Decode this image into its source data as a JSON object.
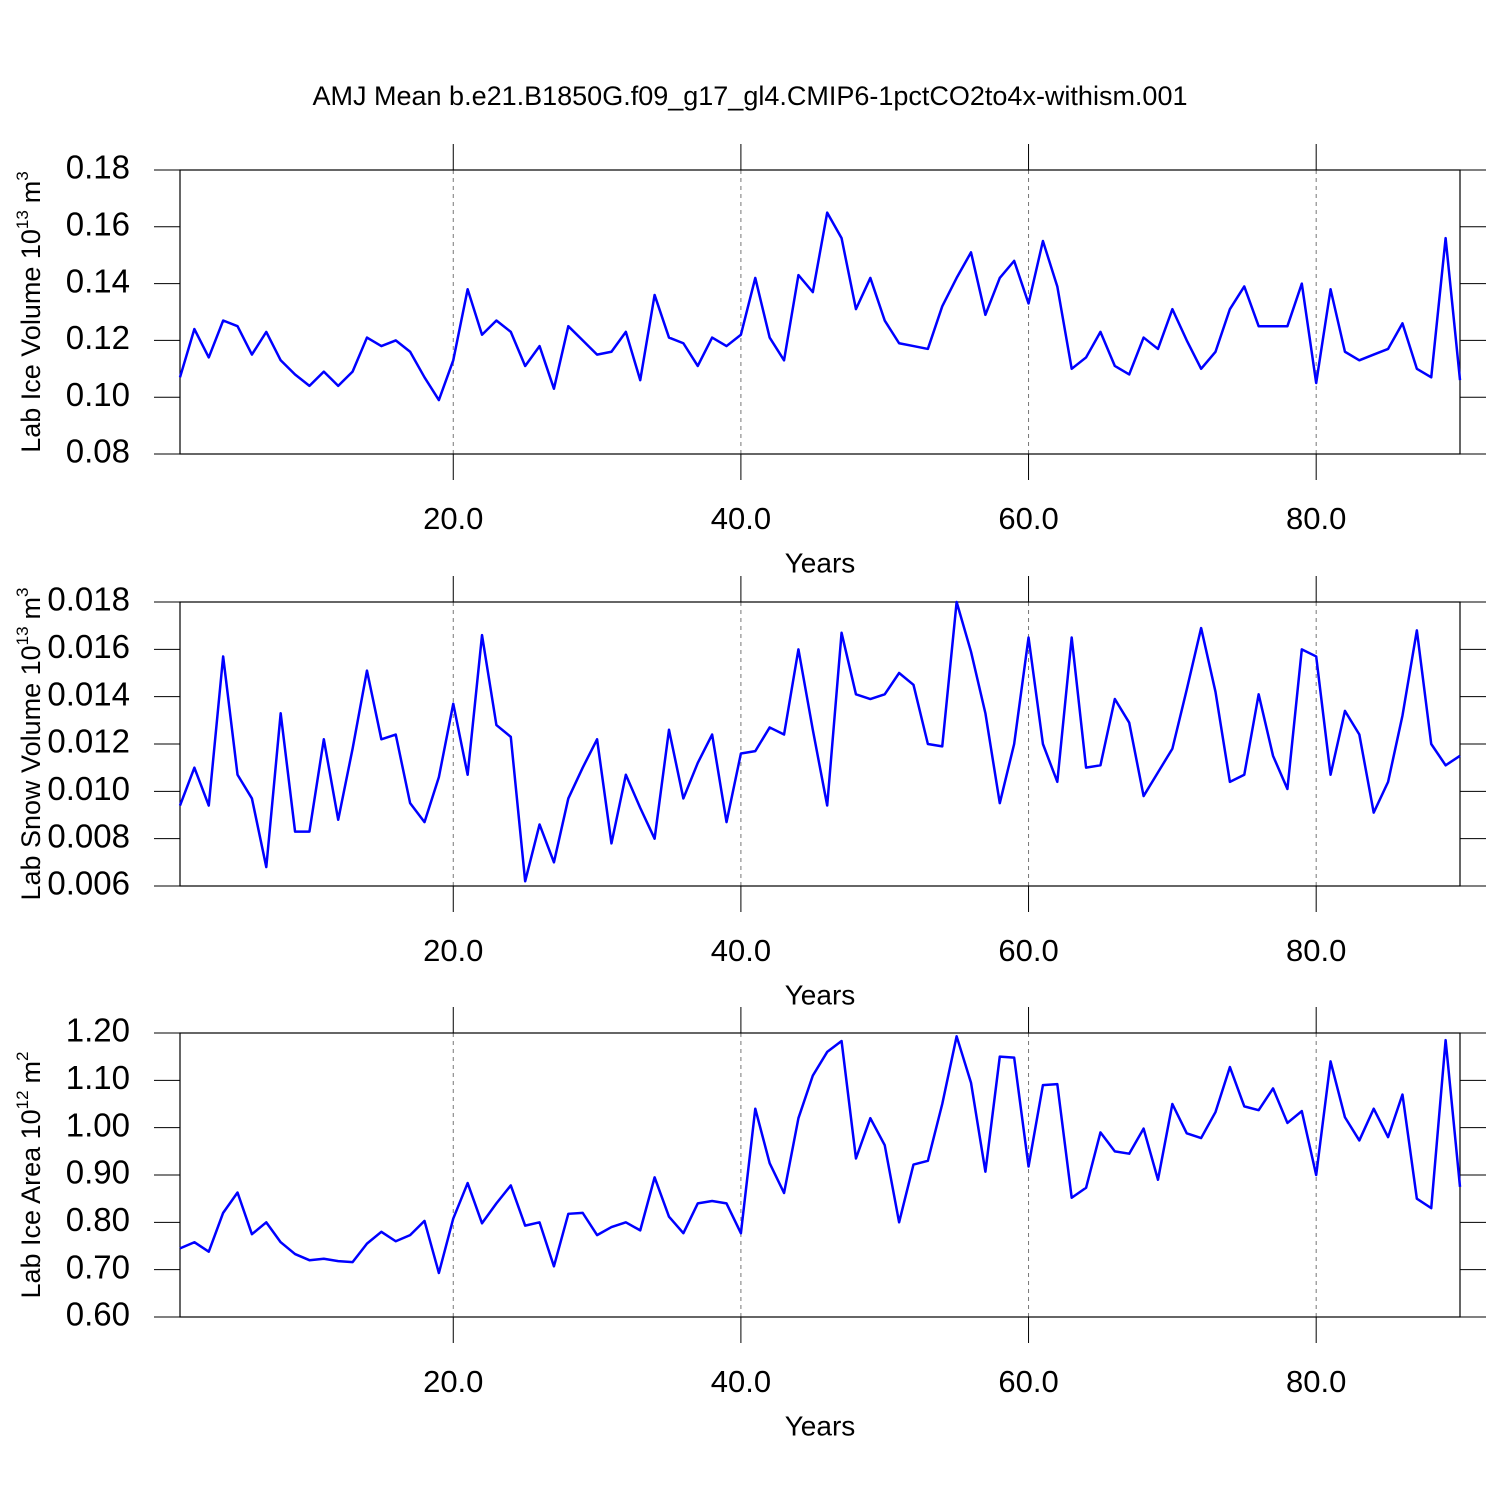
{
  "title": "AMJ Mean b.e21.B1850G.f09_g17_gl4.CMIP6-1pctCO2to4x-withism.001",
  "chart_data": [
    {
      "type": "line",
      "xlabel": "Years",
      "ylabel": [
        {
          "text": "Lab Ice Volume 10"
        },
        {
          "text": "13",
          "sup": true
        },
        {
          "text": "m"
        },
        {
          "text": "3",
          "sup": true
        }
      ],
      "xlim": [
        1,
        90
      ],
      "ylim": [
        0.08,
        0.18
      ],
      "xgrid": true,
      "xticks": [
        {
          "value": 20,
          "label": "20.0"
        },
        {
          "value": 40,
          "label": "40.0"
        },
        {
          "value": 60,
          "label": "60.0"
        },
        {
          "value": 80,
          "label": "80.0"
        }
      ],
      "yticks": [
        0.08,
        {
          "value": 0.1,
          "label": "0.10"
        },
        0.12,
        0.14,
        0.16,
        0.18
      ],
      "x": [
        1,
        2,
        3,
        4,
        5,
        6,
        7,
        8,
        9,
        10,
        11,
        12,
        13,
        14,
        15,
        16,
        17,
        18,
        19,
        20,
        21,
        22,
        23,
        24,
        25,
        26,
        27,
        28,
        29,
        30,
        31,
        32,
        33,
        34,
        35,
        36,
        37,
        38,
        39,
        40,
        41,
        42,
        43,
        44,
        45,
        46,
        47,
        48,
        49,
        50,
        51,
        52,
        53,
        54,
        55,
        56,
        57,
        58,
        59,
        60,
        61,
        62,
        63,
        64,
        65,
        66,
        67,
        68,
        69,
        70,
        71,
        72,
        73,
        74,
        75,
        76,
        77,
        78,
        79,
        80,
        81,
        82,
        83,
        84,
        85,
        86,
        87,
        88,
        89,
        90
      ],
      "series": [
        {
          "color": "#0000ff",
          "values": [
            0.107,
            0.124,
            0.114,
            0.127,
            0.125,
            0.115,
            0.123,
            0.113,
            0.108,
            0.104,
            0.109,
            0.104,
            0.109,
            0.121,
            0.118,
            0.12,
            0.116,
            0.107,
            0.099,
            0.113,
            0.138,
            0.122,
            0.127,
            0.123,
            0.111,
            0.118,
            0.103,
            0.125,
            0.12,
            0.115,
            0.116,
            0.123,
            0.106,
            0.136,
            0.121,
            0.119,
            0.111,
            0.121,
            0.118,
            0.122,
            0.142,
            0.121,
            0.113,
            0.143,
            0.137,
            0.165,
            0.156,
            0.131,
            0.142,
            0.127,
            0.119,
            0.118,
            0.117,
            0.132,
            0.142,
            0.151,
            0.129,
            0.142,
            0.148,
            0.133,
            0.155,
            0.139,
            0.11,
            0.114,
            0.123,
            0.111,
            0.108,
            0.121,
            0.117,
            0.131,
            0.12,
            0.11,
            0.116,
            0.131,
            0.139,
            0.125,
            0.125,
            0.125,
            0.14,
            0.105,
            0.138,
            0.116,
            0.113,
            0.115,
            0.117,
            0.126,
            0.11,
            0.107,
            0.156,
            0.106
          ]
        }
      ]
    },
    {
      "type": "line",
      "xlabel": "Years",
      "ylabel": [
        {
          "text": "Lab Snow Volume 10"
        },
        {
          "text": "13",
          "sup": true
        },
        {
          "text": "m"
        },
        {
          "text": "3",
          "sup": true
        }
      ],
      "xlim": [
        1,
        90
      ],
      "ylim": [
        0.006,
        0.018
      ],
      "xgrid": true,
      "xticks": [
        {
          "value": 20,
          "label": "20.0"
        },
        {
          "value": 40,
          "label": "40.0"
        },
        {
          "value": 60,
          "label": "60.0"
        },
        {
          "value": 80,
          "label": "80.0"
        }
      ],
      "yticks": [
        0.006,
        0.008,
        {
          "value": 0.01,
          "label": "0.010"
        },
        0.012,
        0.014,
        0.016,
        0.018
      ],
      "x": [
        1,
        2,
        3,
        4,
        5,
        6,
        7,
        8,
        9,
        10,
        11,
        12,
        13,
        14,
        15,
        16,
        17,
        18,
        19,
        20,
        21,
        22,
        23,
        24,
        25,
        26,
        27,
        28,
        29,
        30,
        31,
        32,
        33,
        34,
        35,
        36,
        37,
        38,
        39,
        40,
        41,
        42,
        43,
        44,
        45,
        46,
        47,
        48,
        49,
        50,
        51,
        52,
        53,
        54,
        55,
        56,
        57,
        58,
        59,
        60,
        61,
        62,
        63,
        64,
        65,
        66,
        67,
        68,
        69,
        70,
        71,
        72,
        73,
        74,
        75,
        76,
        77,
        78,
        79,
        80,
        81,
        82,
        83,
        84,
        85,
        86,
        87,
        88,
        89,
        90
      ],
      "series": [
        {
          "color": "#0000ff",
          "values": [
            0.0094,
            0.011,
            0.0094,
            0.0157,
            0.0107,
            0.0097,
            0.0068,
            0.0133,
            0.0083,
            0.0083,
            0.0122,
            0.0088,
            0.0118,
            0.0151,
            0.0122,
            0.0124,
            0.0095,
            0.0087,
            0.0106,
            0.0137,
            0.0107,
            0.0166,
            0.0128,
            0.0123,
            0.0062,
            0.0086,
            0.007,
            0.0097,
            0.011,
            0.0122,
            0.0078,
            0.0107,
            0.0093,
            0.008,
            0.0126,
            0.0097,
            0.0112,
            0.0124,
            0.0087,
            0.0116,
            0.0117,
            0.0127,
            0.0124,
            0.016,
            0.0126,
            0.0094,
            0.0167,
            0.0141,
            0.0139,
            0.0141,
            0.015,
            0.0145,
            0.012,
            0.0119,
            0.018,
            0.0159,
            0.0133,
            0.0095,
            0.012,
            0.0165,
            0.012,
            0.0104,
            0.0165,
            0.011,
            0.0111,
            0.0139,
            0.0129,
            0.0098,
            0.0108,
            0.0118,
            0.0143,
            0.0169,
            0.0142,
            0.0104,
            0.0107,
            0.0141,
            0.0115,
            0.0101,
            0.016,
            0.0157,
            0.0107,
            0.0134,
            0.0124,
            0.0091,
            0.0104,
            0.0132,
            0.0168,
            0.012,
            0.0111,
            0.0115
          ]
        }
      ]
    },
    {
      "type": "line",
      "xlabel": "Years",
      "ylabel": [
        {
          "text": "Lab Ice Area 10"
        },
        {
          "text": "12",
          "sup": true
        },
        {
          "text": "m"
        },
        {
          "text": "2",
          "sup": true
        }
      ],
      "xlim": [
        1,
        90
      ],
      "ylim": [
        0.6,
        1.2
      ],
      "xgrid": true,
      "xticks": [
        {
          "value": 20,
          "label": "20.0"
        },
        {
          "value": 40,
          "label": "40.0"
        },
        {
          "value": 60,
          "label": "60.0"
        },
        {
          "value": 80,
          "label": "80.0"
        }
      ],
      "yticks": [
        {
          "value": 0.6,
          "label": "0.60"
        },
        {
          "value": 0.7,
          "label": "0.70"
        },
        {
          "value": 0.8,
          "label": "0.80"
        },
        {
          "value": 0.9,
          "label": "0.90"
        },
        {
          "value": 1.0,
          "label": "1.00"
        },
        {
          "value": 1.1,
          "label": "1.10"
        },
        {
          "value": 1.2,
          "label": "1.20"
        }
      ],
      "x": [
        1,
        2,
        3,
        4,
        5,
        6,
        7,
        8,
        9,
        10,
        11,
        12,
        13,
        14,
        15,
        16,
        17,
        18,
        19,
        20,
        21,
        22,
        23,
        24,
        25,
        26,
        27,
        28,
        29,
        30,
        31,
        32,
        33,
        34,
        35,
        36,
        37,
        38,
        39,
        40,
        41,
        42,
        43,
        44,
        45,
        46,
        47,
        48,
        49,
        50,
        51,
        52,
        53,
        54,
        55,
        56,
        57,
        58,
        59,
        60,
        61,
        62,
        63,
        64,
        65,
        66,
        67,
        68,
        69,
        70,
        71,
        72,
        73,
        74,
        75,
        76,
        77,
        78,
        79,
        80,
        81,
        82,
        83,
        84,
        85,
        86,
        87,
        88,
        89,
        90
      ],
      "series": [
        {
          "color": "#0000ff",
          "values": [
            0.745,
            0.758,
            0.738,
            0.82,
            0.863,
            0.775,
            0.8,
            0.758,
            0.733,
            0.72,
            0.723,
            0.718,
            0.716,
            0.755,
            0.78,
            0.76,
            0.773,
            0.803,
            0.693,
            0.808,
            0.883,
            0.798,
            0.84,
            0.878,
            0.793,
            0.8,
            0.707,
            0.818,
            0.82,
            0.773,
            0.79,
            0.8,
            0.783,
            0.895,
            0.812,
            0.777,
            0.84,
            0.845,
            0.84,
            0.777,
            1.04,
            0.925,
            0.862,
            1.02,
            1.11,
            1.16,
            1.183,
            0.935,
            1.02,
            0.963,
            0.8,
            0.922,
            0.93,
            1.05,
            1.193,
            1.095,
            0.907,
            1.15,
            1.148,
            0.918,
            1.09,
            1.092,
            0.852,
            0.873,
            0.99,
            0.95,
            0.945,
            0.998,
            0.89,
            1.05,
            0.988,
            0.978,
            1.033,
            1.128,
            1.045,
            1.037,
            1.083,
            1.01,
            1.035,
            0.9,
            1.14,
            1.022,
            0.973,
            1.04,
            0.98,
            1.07,
            0.85,
            0.83,
            1.185,
            0.875
          ]
        }
      ]
    }
  ]
}
